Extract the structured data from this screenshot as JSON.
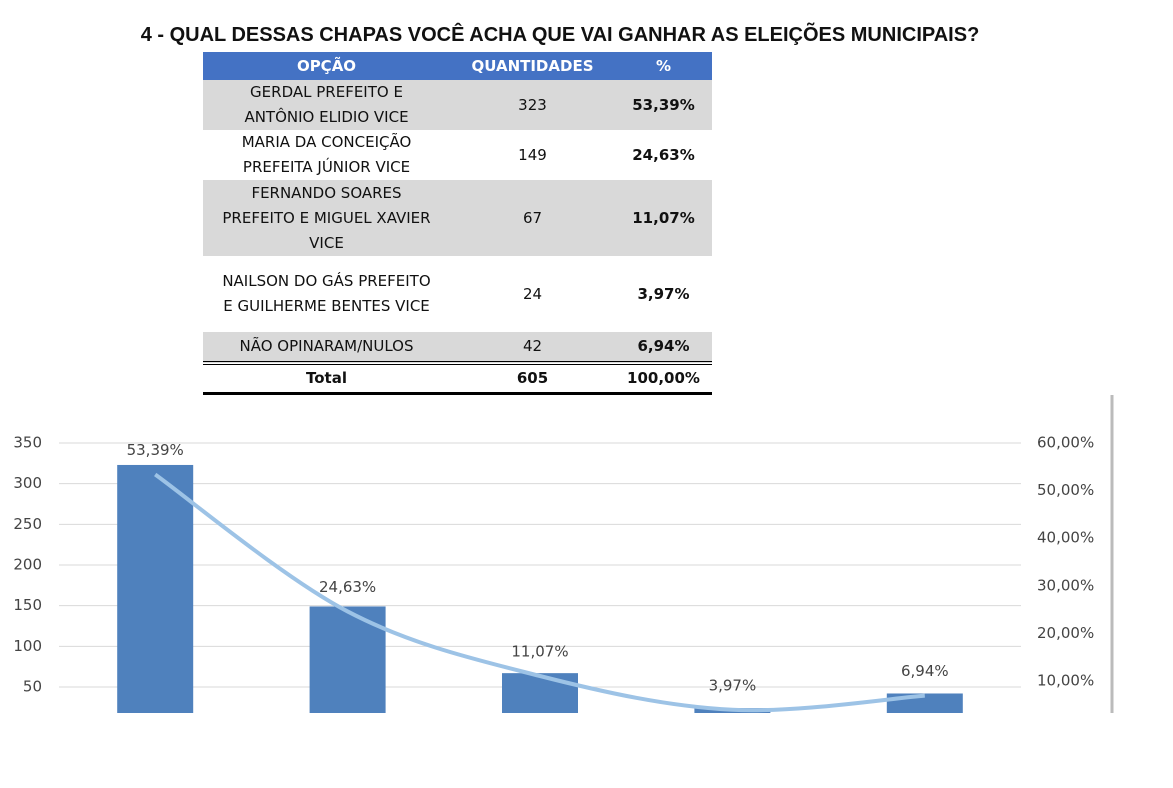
{
  "title": "4 - QUAL DESSAS CHAPAS VOCÊ ACHA QUE VAI GANHAR AS ELEIÇÕES MUNICIPAIS?",
  "table": {
    "header": [
      "OPÇÃO",
      "QUANTIDADES",
      "%"
    ],
    "rows": [
      [
        "GERDAL PREFEITO E\nANTÔNIO ELIDIO VICE",
        "323",
        "53,39%"
      ],
      [
        "MARIA DA CONCEIÇÃO\nPREFEITA JÚNIOR VICE",
        "149",
        "24,63%"
      ],
      [
        "FERNANDO SOARES\nPREFEITO E MIGUEL XAVIER\nVICE",
        "67",
        "11,07%"
      ],
      [
        "NAILSON DO GÁS PREFEITO\nE GUILHERME BENTES VICE",
        "24",
        "3,97%"
      ],
      [
        "NÃO OPINARAM/NULOS",
        "42",
        "6,94%"
      ]
    ],
    "total": [
      "Total",
      "605",
      "100,00%"
    ]
  },
  "chart_data": {
    "type": "bar-line",
    "categories": [
      null,
      null,
      null,
      null,
      null
    ],
    "series": [
      {
        "type": "bar",
        "color": "#4f81bd",
        "values": [
          323,
          149,
          67,
          24,
          42
        ]
      },
      {
        "type": "line",
        "color": "#9dc3e6",
        "axis": "y2",
        "values": [
          53.39,
          24.63,
          11.07,
          3.97,
          6.94
        ],
        "value_labels": [
          "53,39%",
          "24,63%",
          "11,07%",
          "3,97%",
          "6,94%"
        ]
      }
    ],
    "ylim": [
      18,
      350
    ],
    "yticks": [
      50,
      100,
      150,
      200,
      250,
      300,
      350
    ],
    "y2lim": [
      3.3,
      60
    ],
    "y2ticks": [
      {
        "value": 10,
        "label": "10,00%"
      },
      {
        "value": 20,
        "label": "20,00%"
      },
      {
        "value": 30,
        "label": "30,00%"
      },
      {
        "value": 40,
        "label": "40,00%"
      },
      {
        "value": 50,
        "label": "50,00%"
      },
      {
        "value": 60,
        "label": "60,00%"
      }
    ],
    "grid": true
  }
}
